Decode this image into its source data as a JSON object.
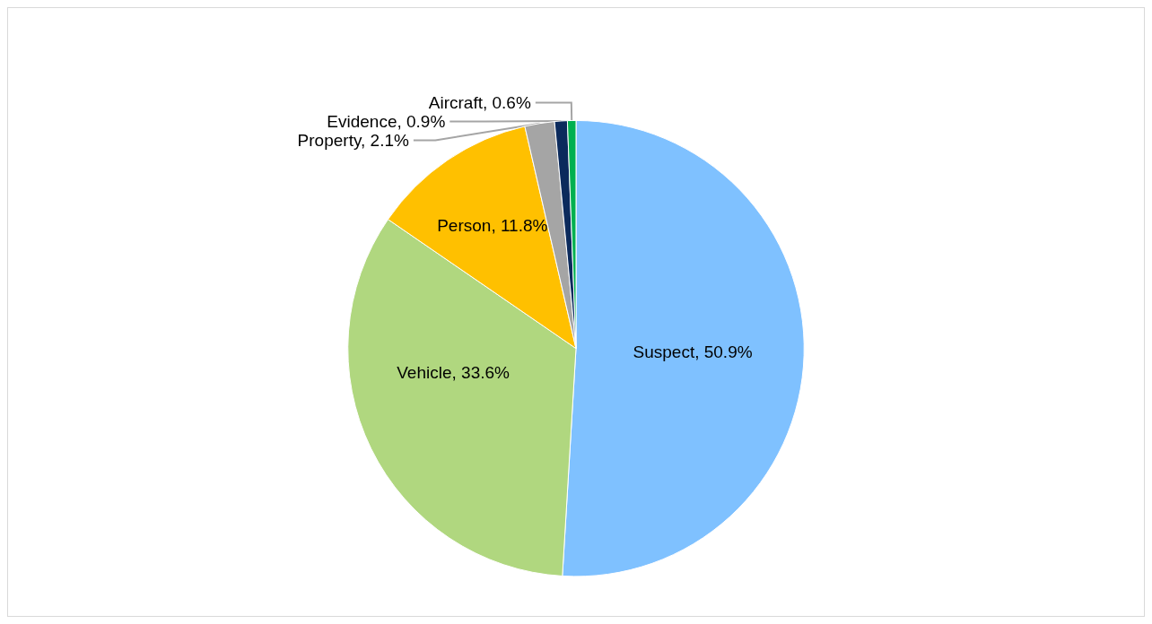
{
  "chart_data": {
    "type": "pie",
    "categories": [
      "Suspect",
      "Vehicle",
      "Person",
      "Property",
      "Evidence",
      "Aircraft"
    ],
    "values": [
      50.9,
      33.6,
      11.8,
      2.1,
      0.9,
      0.6
    ],
    "value_labels": [
      "50.9%",
      "33.6%",
      "11.8%",
      "2.1%",
      "0.9%",
      "0.6%"
    ],
    "colors": [
      "#7fc1ff",
      "#b0d77f",
      "#ffc000",
      "#a5a5a5",
      "#0b2a5c",
      "#00b050"
    ],
    "legend": false
  }
}
